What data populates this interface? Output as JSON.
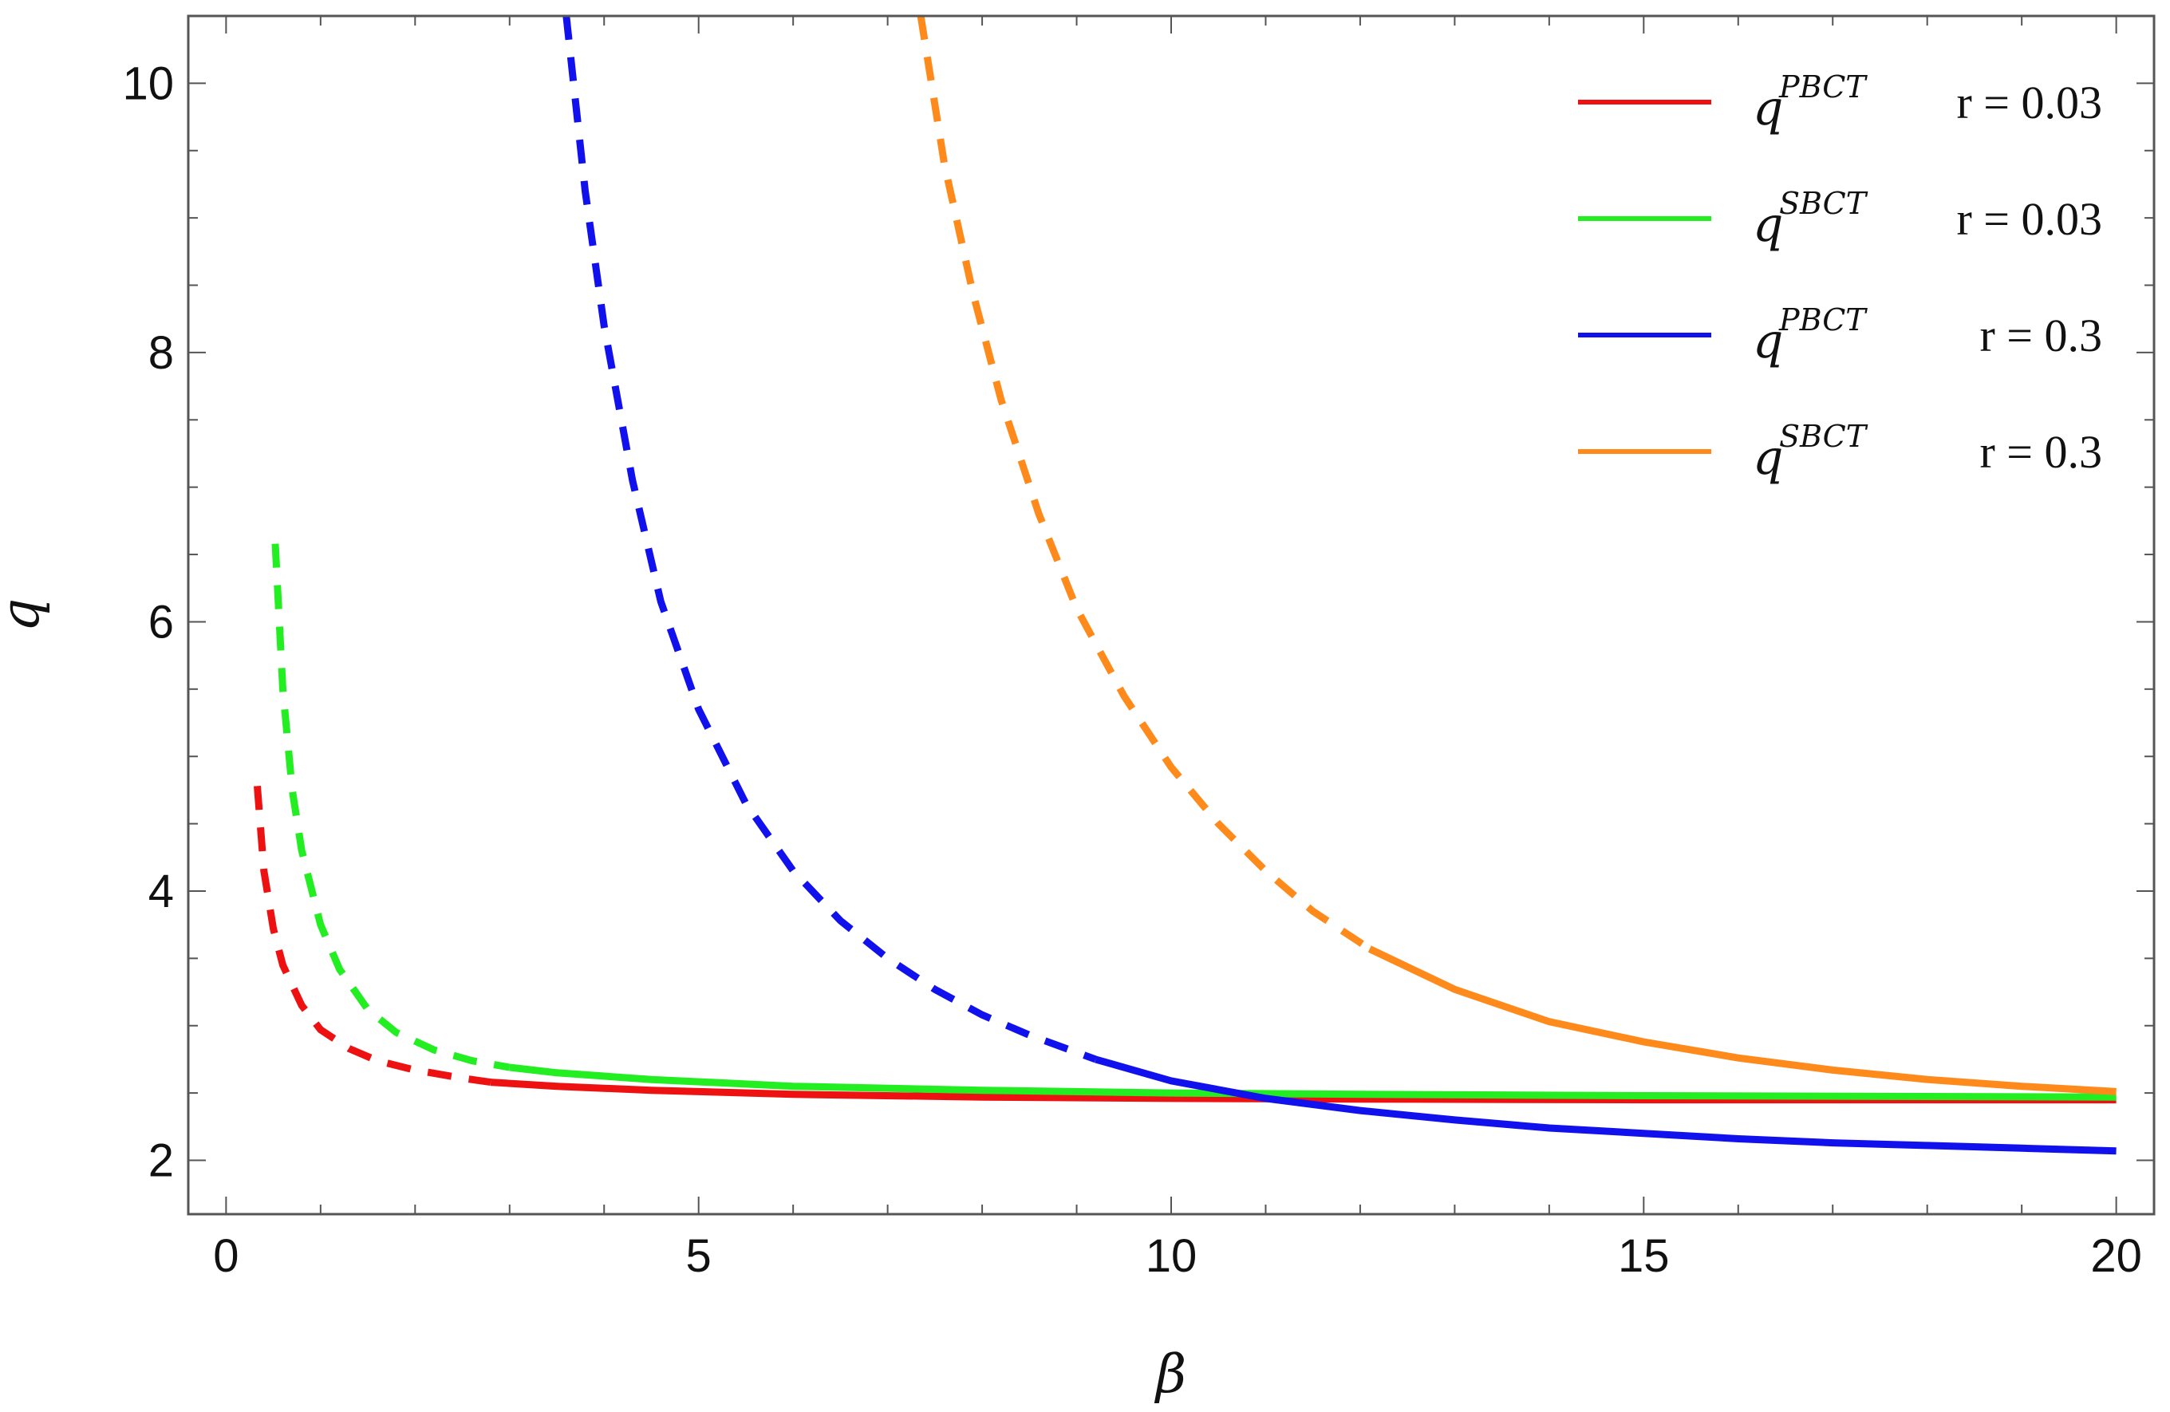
{
  "chart_data": {
    "type": "line",
    "xlabel": "β",
    "ylabel": "q",
    "xlim": [
      -0.4,
      20.4
    ],
    "ylim": [
      1.6,
      10.5
    ],
    "xticks": [
      0,
      5,
      10,
      15,
      20
    ],
    "yticks": [
      2,
      4,
      6,
      8,
      10
    ],
    "grid": false,
    "legend_position": "top-right",
    "series": [
      {
        "name": "PBCT",
        "label_text": "r = 0.03",
        "color": "#ee1111",
        "dash_until_x": 2.8,
        "x": [
          0.33,
          0.4,
          0.5,
          0.6,
          0.8,
          1.0,
          1.3,
          1.6,
          2.0,
          2.5,
          2.8,
          3.5,
          4.5,
          6,
          8,
          10,
          12,
          15,
          20
        ],
        "y": [
          4.78,
          4.15,
          3.72,
          3.45,
          3.15,
          2.97,
          2.83,
          2.74,
          2.67,
          2.61,
          2.58,
          2.55,
          2.52,
          2.49,
          2.47,
          2.46,
          2.455,
          2.45,
          2.45
        ]
      },
      {
        "name": "SBCT",
        "label_text": "r = 0.03",
        "color": "#22ee22",
        "dash_until_x": 3.0,
        "x": [
          0.52,
          0.6,
          0.7,
          0.8,
          1.0,
          1.2,
          1.5,
          1.8,
          2.2,
          2.6,
          3.0,
          3.5,
          4.5,
          6,
          8,
          10,
          12,
          15,
          20
        ],
        "y": [
          6.58,
          5.5,
          4.75,
          4.3,
          3.75,
          3.42,
          3.12,
          2.95,
          2.82,
          2.74,
          2.69,
          2.65,
          2.6,
          2.55,
          2.52,
          2.5,
          2.49,
          2.48,
          2.47
        ]
      },
      {
        "name": "PBCT",
        "label_text": "r = 0.3",
        "color": "#1111ee",
        "dash_until_x": 9.2,
        "x": [
          3.6,
          3.8,
          4.0,
          4.3,
          4.6,
          5.0,
          5.5,
          6.0,
          6.5,
          7.0,
          7.5,
          8.0,
          8.5,
          9.2,
          10,
          11,
          12,
          13,
          14,
          15,
          16,
          17,
          18,
          19,
          20
        ],
        "y": [
          10.5,
          9.2,
          8.2,
          7.05,
          6.15,
          5.35,
          4.65,
          4.15,
          3.78,
          3.5,
          3.27,
          3.08,
          2.93,
          2.75,
          2.59,
          2.46,
          2.37,
          2.3,
          2.24,
          2.2,
          2.16,
          2.13,
          2.11,
          2.09,
          2.07
        ]
      },
      {
        "name": "SBCT",
        "label_text": "r = 0.3",
        "color": "#ff8a1c",
        "dash_until_x": 12.1,
        "x": [
          7.35,
          7.6,
          7.9,
          8.2,
          8.6,
          9.0,
          9.5,
          10,
          10.5,
          11,
          11.5,
          12.1,
          13,
          14,
          15,
          16,
          17,
          18,
          19,
          20
        ],
        "y": [
          10.5,
          9.4,
          8.45,
          7.65,
          6.8,
          6.1,
          5.45,
          4.92,
          4.5,
          4.15,
          3.85,
          3.57,
          3.27,
          3.03,
          2.88,
          2.76,
          2.67,
          2.6,
          2.55,
          2.51
        ]
      }
    ]
  }
}
